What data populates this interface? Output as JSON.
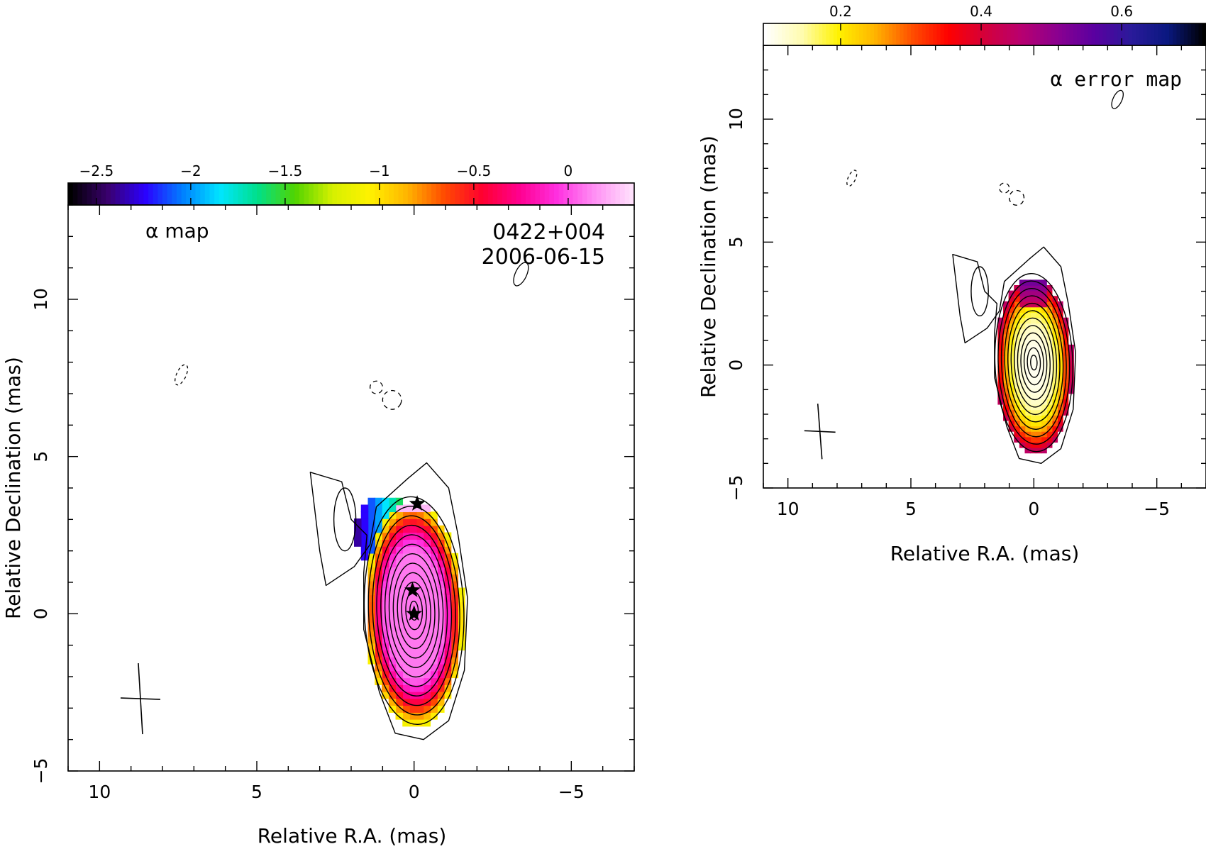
{
  "chart_data": [
    {
      "type": "heatmap",
      "panel_label": "α map",
      "source": "0422+004",
      "date": "2006-06-15",
      "xlabel": "Relative R.A. (mas)",
      "ylabel": "Relative Declination (mas)",
      "xlim": [
        11,
        -7
      ],
      "ylim": [
        -5,
        13
      ],
      "x_ticks": [
        10,
        5,
        0,
        -5
      ],
      "y_ticks": [
        -5,
        0,
        5,
        10
      ],
      "x_tick_labels": [
        "10",
        "5",
        "0",
        "−5"
      ],
      "y_tick_labels": [
        "−5",
        "0",
        "5",
        "10"
      ],
      "colorbar": {
        "range": [
          -2.65,
          0.35
        ],
        "ticks": [
          -2.5,
          -2,
          -1.5,
          -1,
          -0.5,
          0
        ],
        "tick_labels": [
          "−2.5",
          "−2",
          "−1.5",
          "−1",
          "−0.5",
          "0"
        ],
        "colors": [
          "#000000",
          "#3a006e",
          "#2b00ff",
          "#0080ff",
          "#00e5ff",
          "#00e08a",
          "#50d400",
          "#d6f000",
          "#fff200",
          "#ffb400",
          "#ff4a00",
          "#ff0030",
          "#ff0090",
          "#ff30e0",
          "#ff90f4",
          "#ffe0fc"
        ]
      },
      "core_value": 0.1,
      "edge_value": -1.3,
      "stars": [
        {
          "x": -0.1,
          "y": 3.5
        },
        {
          "x": 0.05,
          "y": 0.75
        },
        {
          "x": 0.0,
          "y": 0.0
        }
      ],
      "beam": {
        "x": 8.7,
        "y": -2.7
      }
    },
    {
      "type": "heatmap",
      "panel_label": "α error map",
      "xlabel": "Relative R.A. (mas)",
      "ylabel": "Relative Declination (mas)",
      "xlim": [
        11,
        -7
      ],
      "ylim": [
        -5,
        13
      ],
      "x_ticks": [
        10,
        5,
        0,
        -5
      ],
      "y_ticks": [
        -5,
        0,
        5,
        10
      ],
      "x_tick_labels": [
        "10",
        "5",
        "0",
        "−5"
      ],
      "y_tick_labels": [
        "−5",
        "0",
        "5",
        "10"
      ],
      "colorbar": {
        "range": [
          0.09,
          0.72
        ],
        "ticks": [
          0.2,
          0.4,
          0.6
        ],
        "tick_labels": [
          "0.2",
          "0.4",
          "0.6"
        ],
        "colors": [
          "#ffffff",
          "#fffcb0",
          "#fff200",
          "#ffb400",
          "#ff5000",
          "#ff0000",
          "#d4003a",
          "#b80070",
          "#8a0090",
          "#5a00a0",
          "#2a1a9a",
          "#0a1880",
          "#000000"
        ]
      },
      "core_value": 0.1,
      "edge_value": 0.45,
      "beam": {
        "x": 8.7,
        "y": -2.7
      }
    }
  ]
}
